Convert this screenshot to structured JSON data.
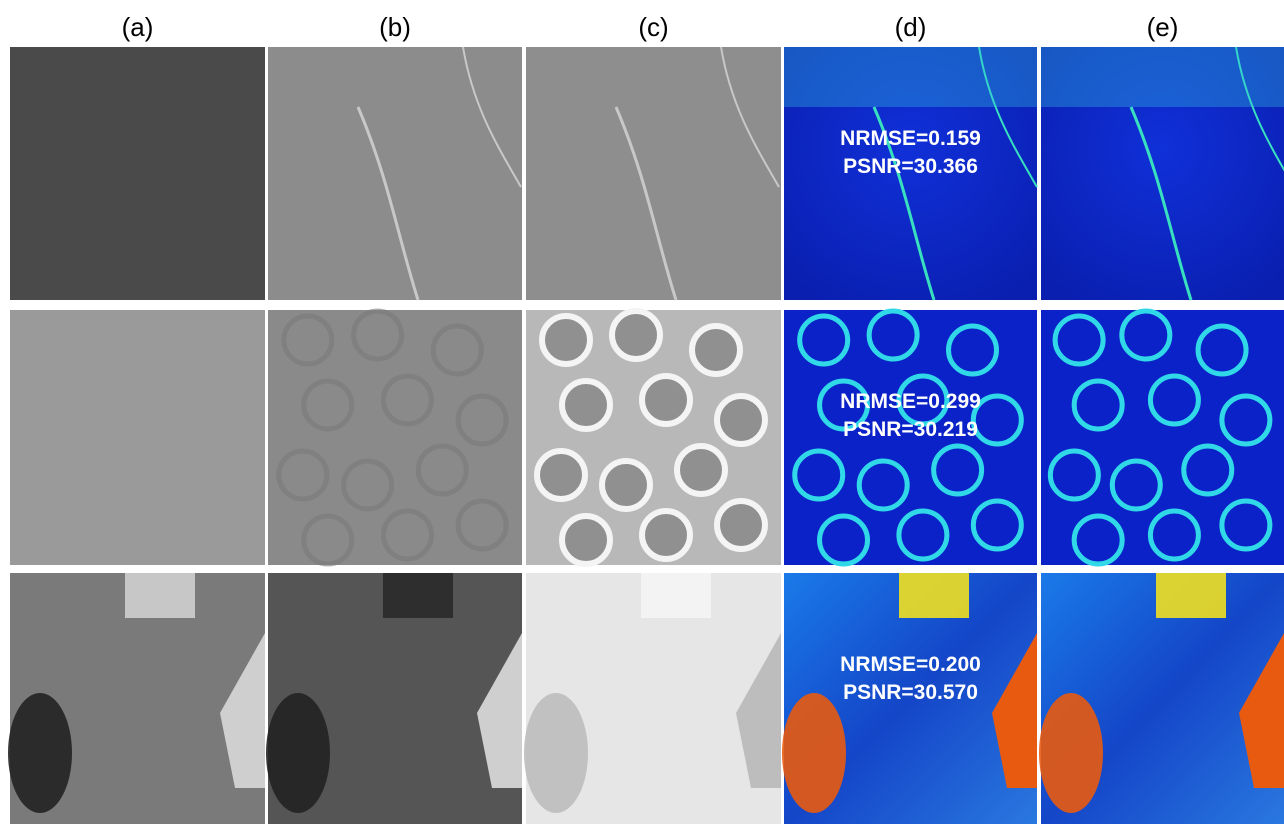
{
  "columns": [
    "(a)",
    "(b)",
    "(c)",
    "(d)",
    "(e)"
  ],
  "rows": [
    {
      "nrmse": "NRMSE=0.159",
      "psnr": "PSNR=30.366"
    },
    {
      "nrmse": "NRMSE=0.299",
      "psnr": "PSNR=30.219"
    },
    {
      "nrmse": "NRMSE=0.200",
      "psnr": "PSNR=30.570"
    }
  ]
}
